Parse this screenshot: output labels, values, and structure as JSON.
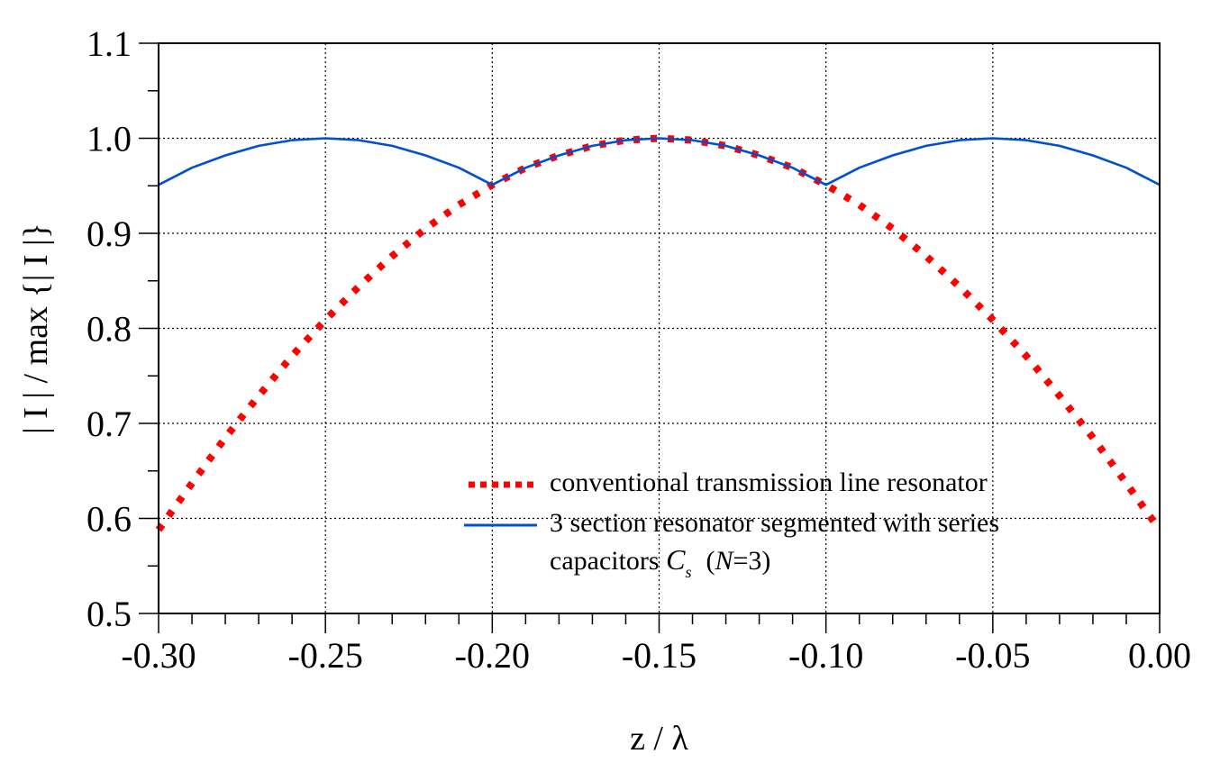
{
  "chart_data": {
    "type": "line",
    "title": "",
    "xlabel": "z / λ",
    "ylabel": "| I | / max {| I |}",
    "xlim": [
      -0.3,
      0.0
    ],
    "ylim": [
      0.5,
      1.1
    ],
    "x_ticks": [
      -0.3,
      -0.25,
      -0.2,
      -0.15,
      -0.1,
      -0.05,
      0.0
    ],
    "x_tick_labels": [
      "-0.30",
      "-0.25",
      "-0.20",
      "-0.15",
      "-0.10",
      "-0.05",
      "0.00"
    ],
    "y_ticks": [
      0.5,
      0.6,
      0.7,
      0.8,
      0.9,
      1.0,
      1.1
    ],
    "y_tick_labels": [
      "0.5",
      "0.6",
      "0.7",
      "0.8",
      "0.9",
      "1.0",
      "1.1"
    ],
    "grid": true,
    "legend_position": "lower-right",
    "series": [
      {
        "name": "conventional transmission line resonator",
        "style": "dotted",
        "color": "#ff0000",
        "x": [
          -0.3,
          -0.29,
          -0.28,
          -0.27,
          -0.26,
          -0.25,
          -0.24,
          -0.23,
          -0.22,
          -0.21,
          -0.2,
          -0.19,
          -0.18,
          -0.17,
          -0.16,
          -0.15,
          -0.14,
          -0.13,
          -0.12,
          -0.11,
          -0.1,
          -0.09,
          -0.08,
          -0.07,
          -0.06,
          -0.05,
          -0.04,
          -0.03,
          -0.02,
          -0.01,
          0.0
        ],
        "values": [
          0.588,
          0.637,
          0.685,
          0.729,
          0.771,
          0.809,
          0.844,
          0.876,
          0.905,
          0.93,
          0.951,
          0.969,
          0.982,
          0.992,
          0.998,
          1.0,
          0.998,
          0.992,
          0.982,
          0.969,
          0.951,
          0.93,
          0.905,
          0.876,
          0.844,
          0.809,
          0.771,
          0.729,
          0.685,
          0.637,
          0.588
        ]
      },
      {
        "name": "3 section resonator segmented with series capacitors Cs (N=3)",
        "style": "solid",
        "color": "#0050d0",
        "x": [
          -0.3,
          -0.29,
          -0.28,
          -0.27,
          -0.26,
          -0.25,
          -0.24,
          -0.23,
          -0.22,
          -0.21,
          -0.2,
          -0.19,
          -0.18,
          -0.17,
          -0.16,
          -0.15,
          -0.14,
          -0.13,
          -0.12,
          -0.11,
          -0.1,
          -0.09,
          -0.08,
          -0.07,
          -0.06,
          -0.05,
          -0.04,
          -0.03,
          -0.02,
          -0.01,
          0.0
        ],
        "values": [
          0.951,
          0.969,
          0.982,
          0.992,
          0.998,
          1.0,
          0.998,
          0.992,
          0.982,
          0.969,
          0.951,
          0.969,
          0.982,
          0.992,
          0.998,
          1.0,
          0.998,
          0.992,
          0.982,
          0.969,
          0.951,
          0.969,
          0.982,
          0.992,
          0.998,
          1.0,
          0.998,
          0.992,
          0.982,
          0.969,
          0.951
        ]
      }
    ],
    "legend": {
      "entry1": "conventional transmission line resonator",
      "entry2_line1": "3 section resonator segmented with series",
      "entry2_line2_prefix": "capacitors ",
      "entry2_symbol": "C",
      "entry2_subscript": "s",
      "entry2_paren_open": "(",
      "entry2_N": "N",
      "entry2_suffix": "=3)"
    }
  }
}
